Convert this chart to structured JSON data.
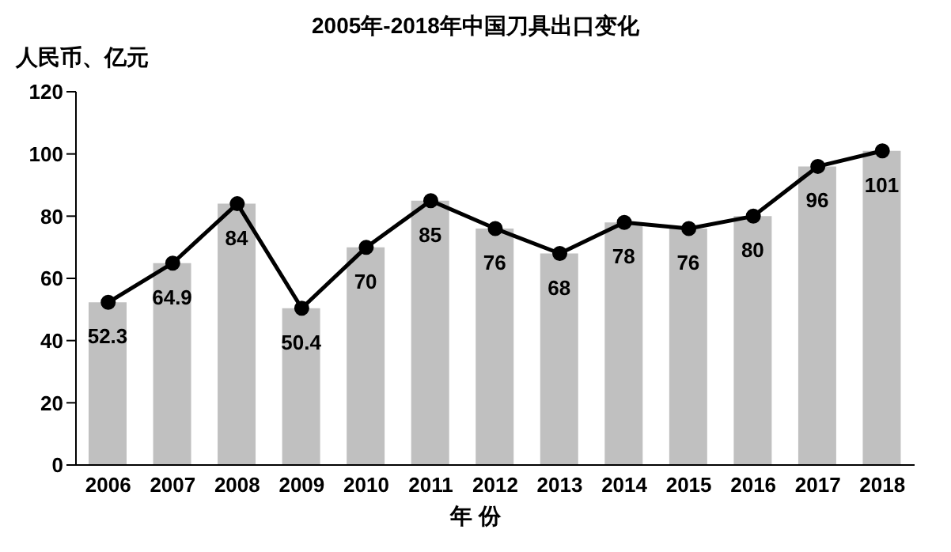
{
  "chart_data": {
    "type": "bar",
    "title": "2005年-2018年中国刀具出口变化",
    "ylabel": "人民币、亿元",
    "xlabel": "年 份",
    "categories": [
      "2006",
      "2007",
      "2008",
      "2009",
      "2010",
      "2011",
      "2012",
      "2013",
      "2014",
      "2015",
      "2016",
      "2017",
      "2018"
    ],
    "series": [
      {
        "color": "#c0c0c0",
        "values": [
          52.3,
          64.9,
          84,
          50.4,
          70,
          85,
          76,
          68,
          78,
          76,
          80,
          96,
          101
        ],
        "value_labels": [
          "52.3",
          "64.9",
          "84",
          "50.4",
          "70",
          "85",
          "76",
          "68",
          "78",
          "76",
          "80",
          "96",
          "101"
        ]
      },
      {
        "type": "line",
        "color": "#000000",
        "values": [
          52.3,
          64.9,
          84,
          50.4,
          70,
          85,
          76,
          68,
          78,
          76,
          80,
          96,
          101
        ]
      }
    ],
    "ylim": [
      0,
      120
    ],
    "yticks": [
      0,
      20,
      40,
      60,
      80,
      100,
      120
    ],
    "marker": "circle",
    "line_style": "solid"
  }
}
